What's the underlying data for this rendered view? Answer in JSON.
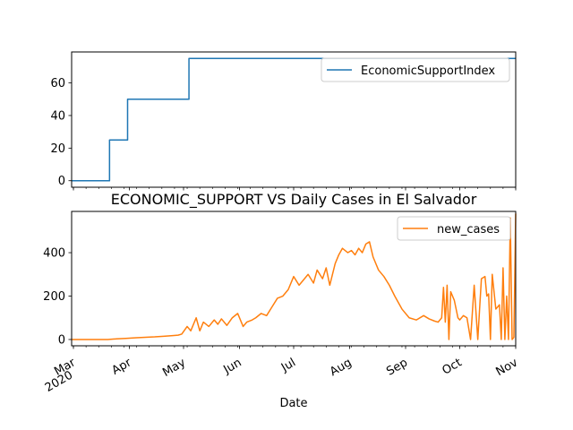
{
  "figure": {
    "xlabel": "Date"
  },
  "chart_data": [
    {
      "type": "line",
      "title": "",
      "xlabel": "",
      "ylabel": "",
      "xlim": [
        "2020-02-29",
        "2020-11-01"
      ],
      "ylim": [
        -4,
        79
      ],
      "yticks": [
        0,
        20,
        40,
        60
      ],
      "legend": "top-right",
      "series": [
        {
          "name": "EconomicSupportIndex",
          "color": "#1f77b4",
          "x": [
            "2020-02-29",
            "2020-03-21",
            "2020-03-21",
            "2020-03-31",
            "2020-03-31",
            "2020-05-04",
            "2020-05-04",
            "2020-11-01"
          ],
          "y": [
            0,
            0,
            25,
            25,
            50,
            50,
            75,
            75
          ]
        }
      ]
    },
    {
      "type": "line",
      "title": "ECONOMIC_SUPPORT VS Daily Cases in El Salvador",
      "xlabel": "Date",
      "ylabel": "",
      "xlim": [
        "2020-02-29",
        "2020-11-01"
      ],
      "ylim": [
        -29,
        590
      ],
      "yticks": [
        0,
        200,
        400
      ],
      "xticks": [
        {
          "date": "2020-03-01",
          "label": "Mar",
          "sublabel": "2020"
        },
        {
          "date": "2020-04-01",
          "label": "Apr",
          "sublabel": ""
        },
        {
          "date": "2020-05-01",
          "label": "May",
          "sublabel": ""
        },
        {
          "date": "2020-06-01",
          "label": "Jun",
          "sublabel": ""
        },
        {
          "date": "2020-07-01",
          "label": "Jul",
          "sublabel": ""
        },
        {
          "date": "2020-08-01",
          "label": "Aug",
          "sublabel": ""
        },
        {
          "date": "2020-09-01",
          "label": "Sep",
          "sublabel": ""
        },
        {
          "date": "2020-10-01",
          "label": "Oct",
          "sublabel": ""
        },
        {
          "date": "2020-11-01",
          "label": "Nov",
          "sublabel": ""
        }
      ],
      "legend": "top-right",
      "series": [
        {
          "name": "new_cases",
          "color": "#ff7f0e",
          "x": [
            "2020-02-29",
            "2020-03-20",
            "2020-03-25",
            "2020-03-30",
            "2020-04-05",
            "2020-04-10",
            "2020-04-15",
            "2020-04-20",
            "2020-04-25",
            "2020-04-28",
            "2020-04-30",
            "2020-05-03",
            "2020-05-05",
            "2020-05-08",
            "2020-05-10",
            "2020-05-12",
            "2020-05-15",
            "2020-05-18",
            "2020-05-20",
            "2020-05-22",
            "2020-05-25",
            "2020-05-28",
            "2020-05-31",
            "2020-06-03",
            "2020-06-05",
            "2020-06-08",
            "2020-06-10",
            "2020-06-13",
            "2020-06-16",
            "2020-06-19",
            "2020-06-22",
            "2020-06-25",
            "2020-06-28",
            "2020-07-01",
            "2020-07-04",
            "2020-07-07",
            "2020-07-09",
            "2020-07-12",
            "2020-07-14",
            "2020-07-17",
            "2020-07-19",
            "2020-07-21",
            "2020-07-24",
            "2020-07-26",
            "2020-07-28",
            "2020-07-31",
            "2020-08-02",
            "2020-08-04",
            "2020-08-06",
            "2020-08-08",
            "2020-08-10",
            "2020-08-12",
            "2020-08-14",
            "2020-08-17",
            "2020-08-20",
            "2020-08-23",
            "2020-08-26",
            "2020-08-30",
            "2020-09-03",
            "2020-09-07",
            "2020-09-11",
            "2020-09-14",
            "2020-09-17",
            "2020-09-19",
            "2020-09-21",
            "2020-09-22",
            "2020-09-23",
            "2020-09-24",
            "2020-09-25",
            "2020-09-26",
            "2020-09-28",
            "2020-09-30",
            "2020-10-01",
            "2020-10-03",
            "2020-10-05",
            "2020-10-07",
            "2020-10-09",
            "2020-10-11",
            "2020-10-13",
            "2020-10-15",
            "2020-10-16",
            "2020-10-17",
            "2020-10-18",
            "2020-10-19",
            "2020-10-21",
            "2020-10-23",
            "2020-10-24",
            "2020-10-25",
            "2020-10-26",
            "2020-10-27",
            "2020-10-28",
            "2020-10-29",
            "2020-10-30",
            "2020-10-31",
            "2020-11-01"
          ],
          "y": [
            0,
            0,
            3,
            5,
            8,
            10,
            12,
            15,
            18,
            20,
            25,
            60,
            40,
            100,
            40,
            80,
            60,
            90,
            70,
            95,
            65,
            100,
            120,
            60,
            80,
            90,
            100,
            120,
            110,
            150,
            190,
            200,
            230,
            290,
            250,
            280,
            300,
            260,
            320,
            280,
            330,
            250,
            350,
            390,
            420,
            400,
            410,
            390,
            420,
            400,
            440,
            450,
            380,
            320,
            290,
            250,
            200,
            140,
            100,
            90,
            110,
            95,
            85,
            80,
            100,
            240,
            80,
            250,
            0,
            220,
            180,
            100,
            90,
            110,
            100,
            0,
            250,
            0,
            280,
            290,
            200,
            210,
            0,
            300,
            140,
            160,
            0,
            330,
            0,
            200,
            0,
            560,
            0,
            10,
            580
          ]
        }
      ]
    }
  ]
}
